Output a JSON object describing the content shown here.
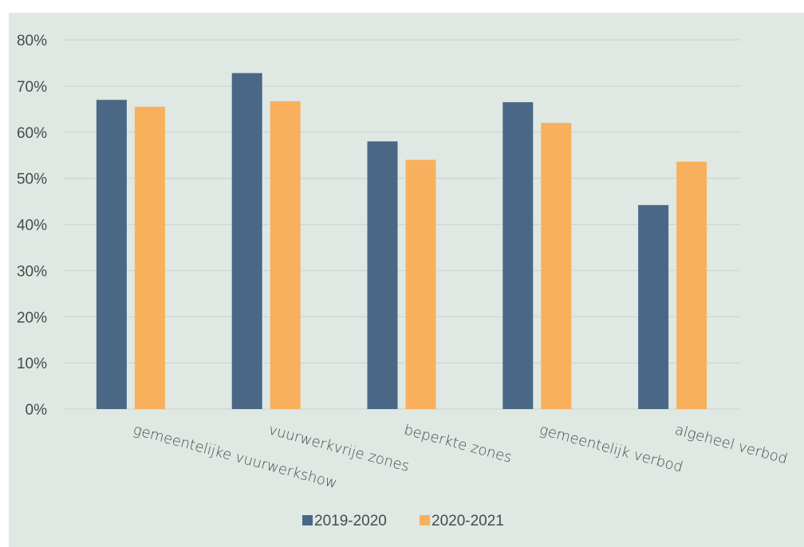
{
  "chart_data": {
    "type": "bar",
    "categories": [
      "gemeentelijke vuurwerkshow",
      "vuurwerkvrije zones",
      "beperkte zones",
      "gemeentelijk verbod",
      "algeheel verbod"
    ],
    "series": [
      {
        "name": "2019-2020",
        "values": [
          67,
          72.8,
          58,
          66.5,
          44.2
        ],
        "color": "#4a6886"
      },
      {
        "name": "2020-2021",
        "values": [
          65.5,
          66.7,
          54,
          62,
          53.6
        ],
        "color": "#f8b05c"
      }
    ],
    "y_ticks": [
      "0%",
      "10%",
      "20%",
      "30%",
      "40%",
      "50%",
      "60%",
      "70%",
      "80%"
    ],
    "ylim": [
      0,
      80
    ],
    "grid": true,
    "legend_position": "bottom",
    "background_color": "#dfe8e3"
  }
}
